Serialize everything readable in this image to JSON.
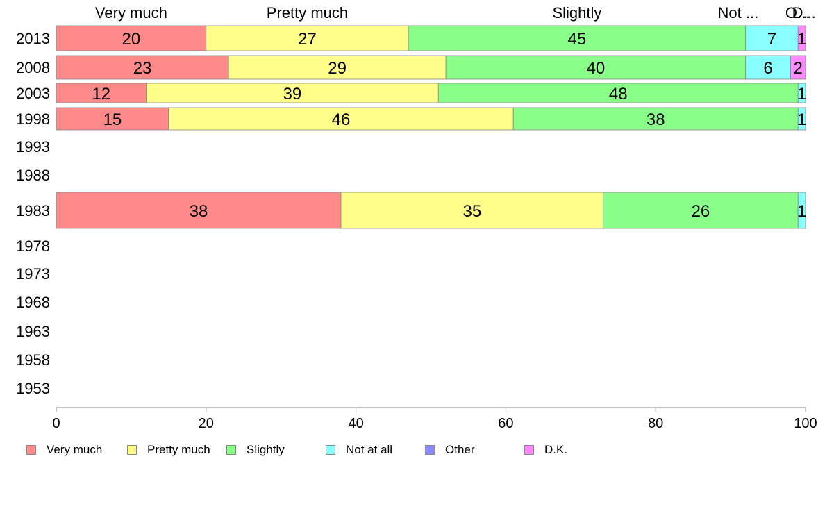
{
  "chart_data": {
    "type": "bar",
    "orientation": "horizontal",
    "stacked": true,
    "categories": [
      "2013",
      "2008",
      "2003",
      "1998",
      "1993",
      "1988",
      "1983",
      "1978",
      "1973",
      "1968",
      "1963",
      "1958",
      "1953"
    ],
    "series": [
      {
        "name": "Very much",
        "color": "#ff8a8a",
        "values": [
          20,
          23,
          12,
          15,
          null,
          null,
          38,
          null,
          null,
          null,
          null,
          null,
          null
        ]
      },
      {
        "name": "Pretty much",
        "color": "#ffff8a",
        "values": [
          27,
          29,
          39,
          46,
          null,
          null,
          35,
          null,
          null,
          null,
          null,
          null,
          null
        ]
      },
      {
        "name": "Slightly",
        "color": "#8aff8a",
        "values": [
          45,
          40,
          48,
          38,
          null,
          null,
          26,
          null,
          null,
          null,
          null,
          null,
          null
        ]
      },
      {
        "name": "Not at all",
        "color": "#8affff",
        "values": [
          7,
          6,
          1,
          1,
          null,
          null,
          1,
          null,
          null,
          null,
          null,
          null,
          null
        ]
      },
      {
        "name": "Other",
        "color": "#8a8aff",
        "values": [
          0,
          0,
          0,
          0,
          null,
          null,
          0,
          null,
          null,
          null,
          null,
          null,
          null
        ]
      },
      {
        "name": "D.K.",
        "color": "#ff8aff",
        "values": [
          1,
          2,
          0,
          0,
          null,
          null,
          0,
          null,
          null,
          null,
          null,
          null,
          null
        ]
      }
    ],
    "top_labels": [
      "Very much",
      "Pretty much",
      "Slightly",
      "Not ...",
      "O...",
      "D..."
    ],
    "xlim": [
      0,
      100
    ],
    "xticks": [
      0,
      20,
      40,
      60,
      80,
      100
    ],
    "grid": false,
    "legend_position": "bottom"
  }
}
